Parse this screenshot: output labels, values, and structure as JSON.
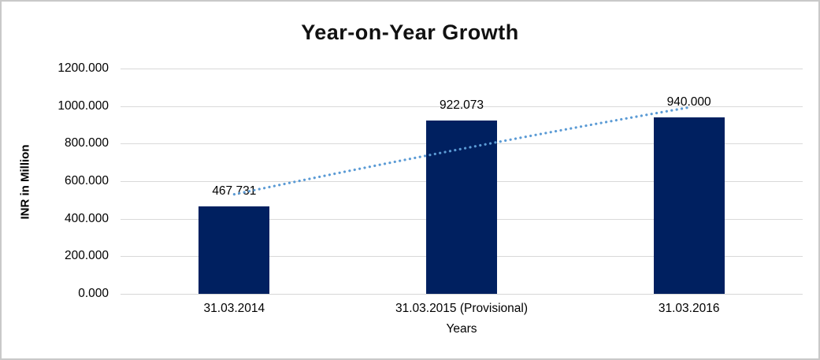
{
  "chart_data": {
    "type": "bar",
    "title": "Year-on-Year Growth",
    "xlabel": "Years",
    "ylabel": "INR in Million",
    "categories": [
      "31.03.2014",
      "31.03.2015 (Provisional)",
      "31.03.2016"
    ],
    "values": [
      467.731,
      922.073,
      940.0
    ],
    "data_labels": [
      "467.731",
      "922.073",
      "940.000"
    ],
    "y_ticks": [
      "0.000",
      "200.000",
      "400.000",
      "600.000",
      "800.000",
      "1000.000",
      "1200.000"
    ],
    "ylim": [
      0,
      1200
    ],
    "grid": true,
    "legend": "none",
    "bar_color": "#002060",
    "gridline_color": "#d9d9d9",
    "trendline": {
      "style": "dotted",
      "color": "#5b9bd5",
      "fitted_values": [
        530,
        772,
        993
      ]
    }
  }
}
